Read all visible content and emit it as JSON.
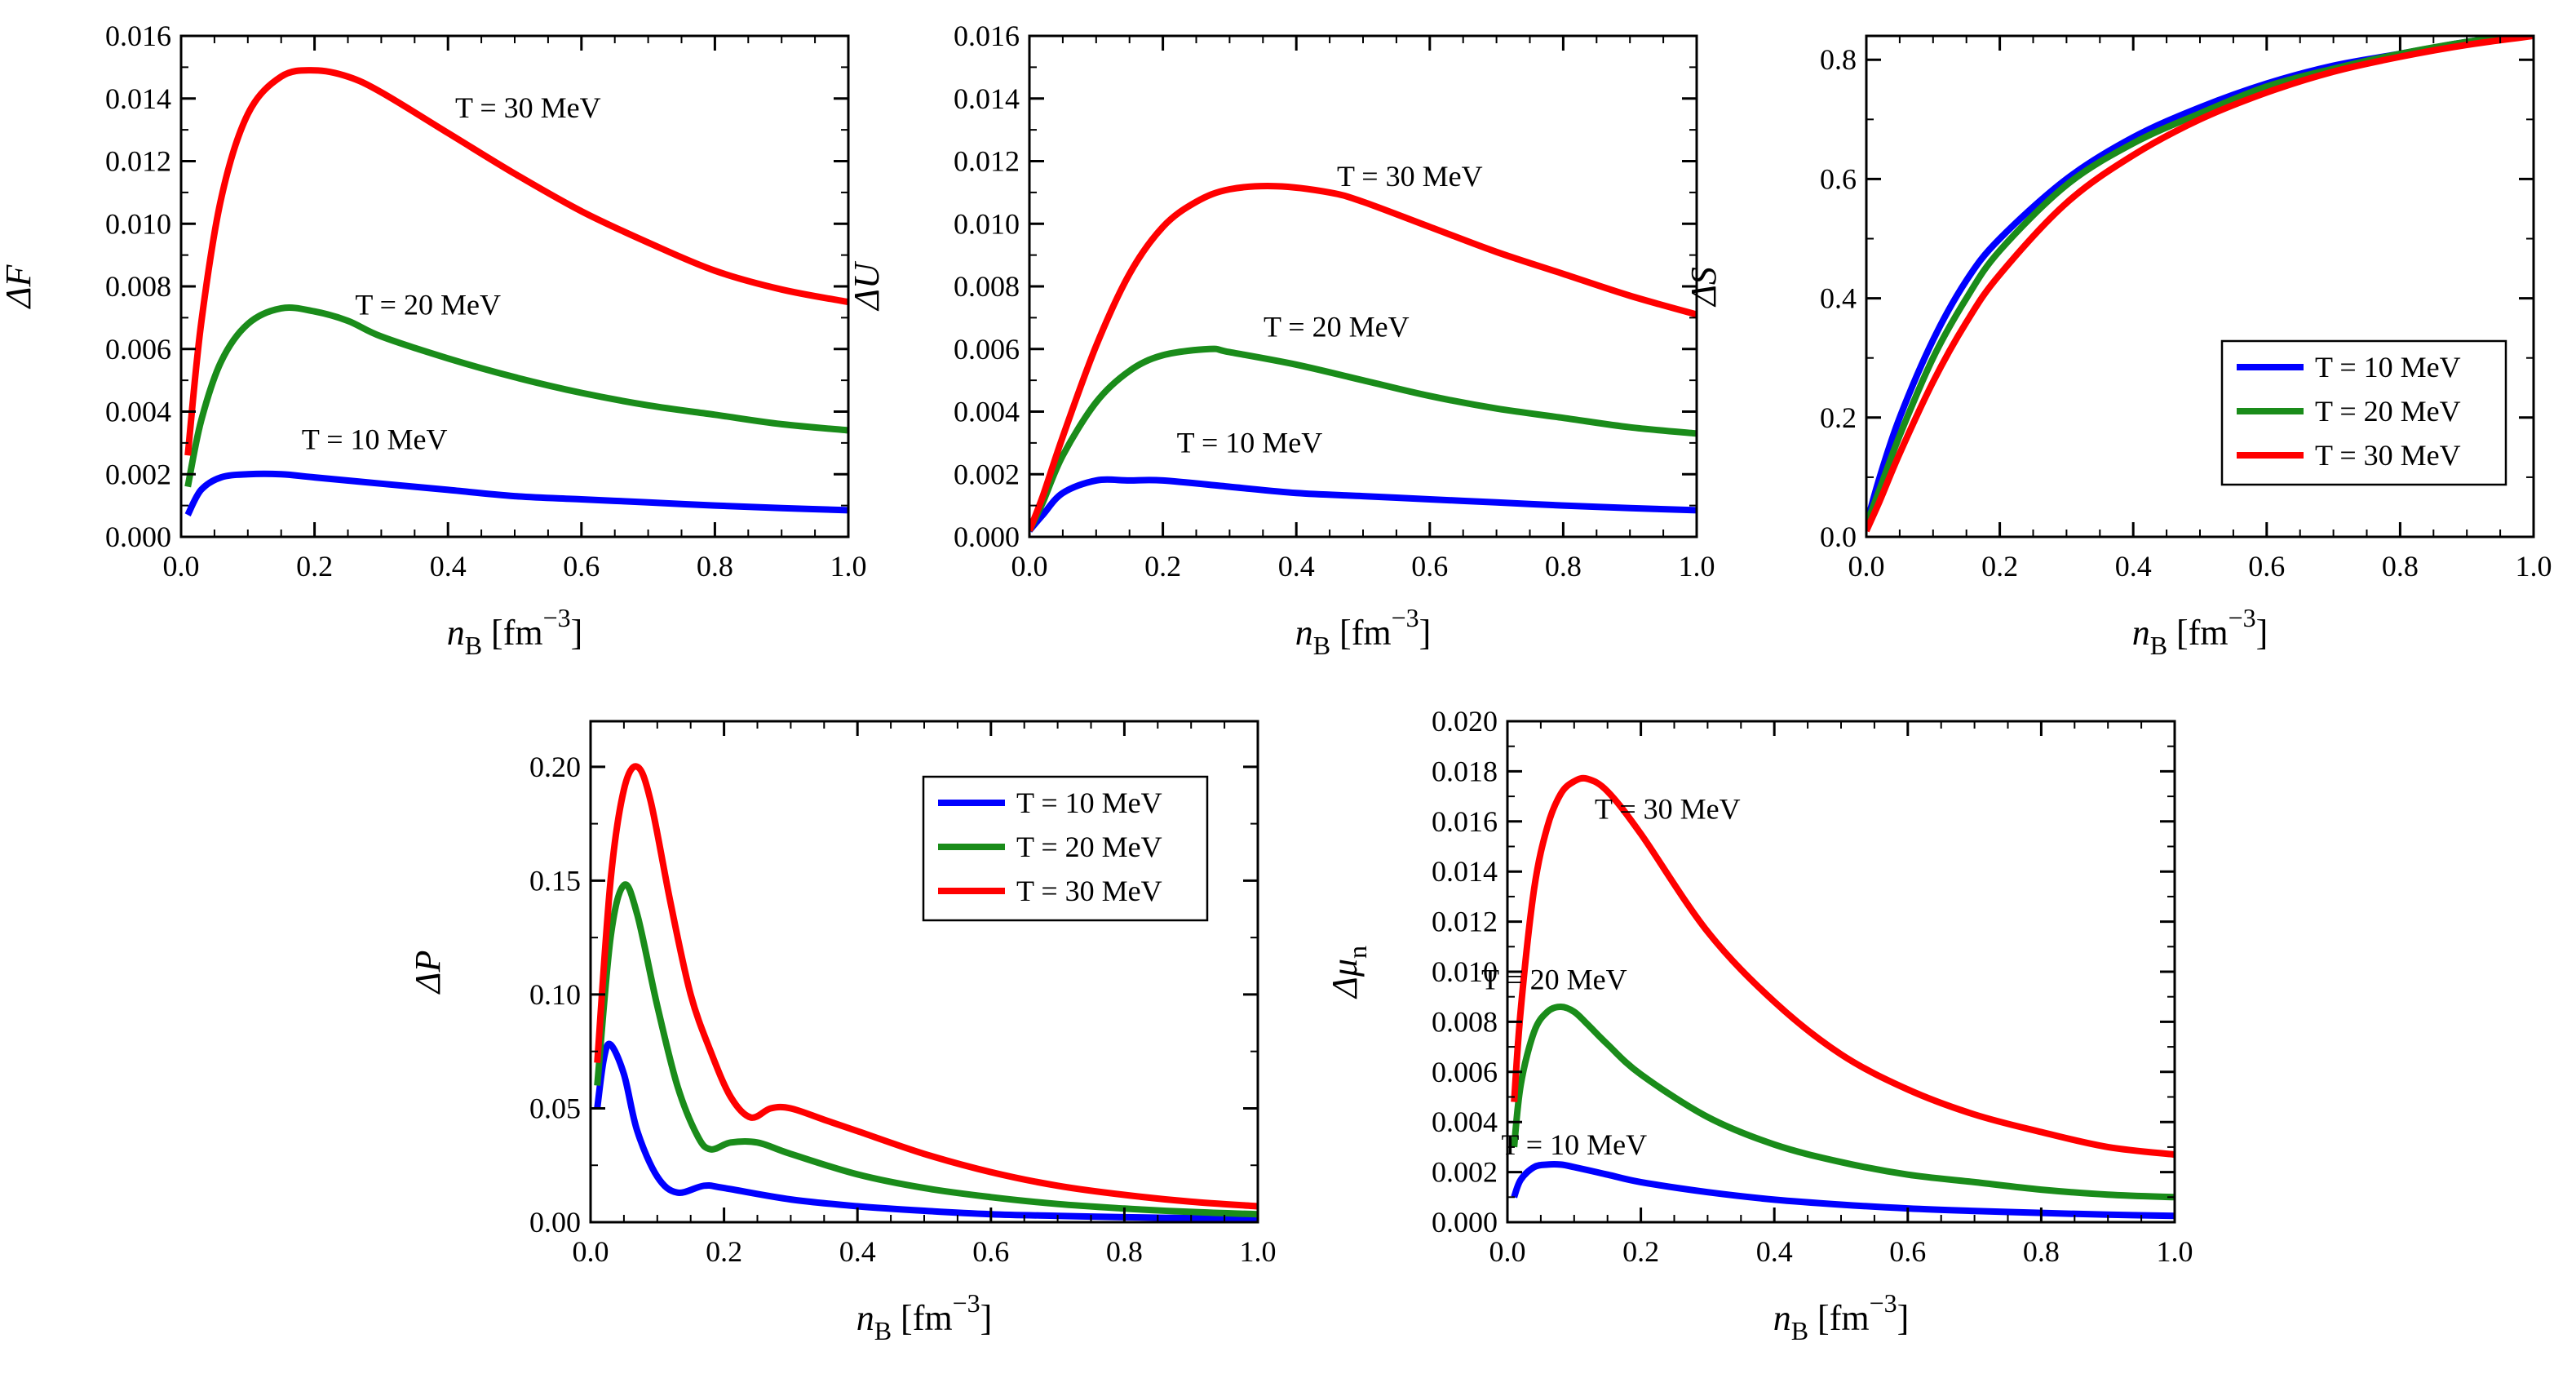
{
  "colors": {
    "T10": "#0000ff",
    "T20": "#1a8c1a",
    "T30": "#ff0000",
    "frame": "#000000"
  },
  "chart_data": [
    {
      "id": "dF",
      "type": "line",
      "xlabel": "n_B [fm^-3]",
      "ylabel": "ΔF",
      "xlim": [
        0,
        1.0
      ],
      "ylim": [
        0,
        0.016
      ],
      "xticks": [
        "0.0",
        "0.2",
        "0.4",
        "0.6",
        "0.8",
        "1.0"
      ],
      "yticks": [
        "0.000",
        "0.002",
        "0.004",
        "0.006",
        "0.008",
        "0.010",
        "0.012",
        "0.014",
        "0.016"
      ],
      "legend": null,
      "annotations": [
        {
          "text": "T = 30 MeV",
          "x": 0.52,
          "y": 0.0134
        },
        {
          "text": "T = 20 MeV",
          "x": 0.37,
          "y": 0.0071
        },
        {
          "text": "T = 10 MeV",
          "x": 0.29,
          "y": 0.0028
        }
      ],
      "series": [
        {
          "name": "T = 10 MeV",
          "color_key": "T10",
          "x": [
            0.01,
            0.03,
            0.06,
            0.1,
            0.15,
            0.2,
            0.3,
            0.4,
            0.5,
            0.6,
            0.7,
            0.8,
            0.9,
            1.0
          ],
          "y": [
            0.0007,
            0.0015,
            0.0019,
            0.002,
            0.002,
            0.0019,
            0.0017,
            0.0015,
            0.0013,
            0.0012,
            0.0011,
            0.001,
            0.00092,
            0.00085
          ]
        },
        {
          "name": "T = 20 MeV",
          "color_key": "T20",
          "x": [
            0.01,
            0.03,
            0.06,
            0.1,
            0.15,
            0.2,
            0.25,
            0.3,
            0.4,
            0.5,
            0.6,
            0.7,
            0.8,
            0.9,
            1.0
          ],
          "y": [
            0.0016,
            0.0037,
            0.0056,
            0.0068,
            0.0073,
            0.0072,
            0.0069,
            0.0064,
            0.0057,
            0.0051,
            0.0046,
            0.0042,
            0.0039,
            0.0036,
            0.0034
          ]
        },
        {
          "name": "T = 30 MeV",
          "color_key": "T30",
          "x": [
            0.01,
            0.03,
            0.06,
            0.1,
            0.15,
            0.2,
            0.25,
            0.3,
            0.4,
            0.5,
            0.6,
            0.7,
            0.8,
            0.9,
            1.0
          ],
          "y": [
            0.0026,
            0.0068,
            0.0108,
            0.0135,
            0.0147,
            0.0149,
            0.0147,
            0.0142,
            0.0129,
            0.0116,
            0.0104,
            0.0094,
            0.0085,
            0.0079,
            0.0075
          ]
        }
      ]
    },
    {
      "id": "dU",
      "type": "line",
      "xlabel": "n_B [fm^-3]",
      "ylabel": "ΔU",
      "xlim": [
        0,
        1.0
      ],
      "ylim": [
        0,
        0.016
      ],
      "xticks": [
        "0.0",
        "0.2",
        "0.4",
        "0.6",
        "0.8",
        "1.0"
      ],
      "yticks": [
        "0.000",
        "0.002",
        "0.004",
        "0.006",
        "0.008",
        "0.010",
        "0.012",
        "0.014",
        "0.016"
      ],
      "legend": null,
      "annotations": [
        {
          "text": "T = 30 MeV",
          "x": 0.57,
          "y": 0.0112
        },
        {
          "text": "T = 20 MeV",
          "x": 0.46,
          "y": 0.0064
        },
        {
          "text": "T = 10 MeV",
          "x": 0.33,
          "y": 0.0027
        }
      ],
      "series": [
        {
          "name": "T = 10 MeV",
          "color_key": "T10",
          "x": [
            0.0,
            0.02,
            0.05,
            0.1,
            0.15,
            0.2,
            0.3,
            0.4,
            0.5,
            0.6,
            0.7,
            0.8,
            0.9,
            1.0
          ],
          "y": [
            0.0002,
            0.0007,
            0.0014,
            0.0018,
            0.0018,
            0.0018,
            0.0016,
            0.0014,
            0.0013,
            0.0012,
            0.0011,
            0.001,
            0.00092,
            0.00085
          ]
        },
        {
          "name": "T = 20 MeV",
          "color_key": "T20",
          "x": [
            0.0,
            0.02,
            0.05,
            0.1,
            0.15,
            0.2,
            0.27,
            0.3,
            0.4,
            0.5,
            0.6,
            0.7,
            0.8,
            0.9,
            1.0
          ],
          "y": [
            0.0002,
            0.0011,
            0.0026,
            0.0043,
            0.0053,
            0.0058,
            0.006,
            0.0059,
            0.0055,
            0.005,
            0.0045,
            0.0041,
            0.0038,
            0.0035,
            0.0033
          ]
        },
        {
          "name": "T = 30 MeV",
          "color_key": "T30",
          "x": [
            0.0,
            0.02,
            0.05,
            0.1,
            0.15,
            0.2,
            0.25,
            0.3,
            0.37,
            0.45,
            0.5,
            0.6,
            0.7,
            0.8,
            0.9,
            1.0
          ],
          "y": [
            0.0002,
            0.0013,
            0.0032,
            0.0061,
            0.0084,
            0.0099,
            0.0107,
            0.0111,
            0.0112,
            0.011,
            0.0107,
            0.0099,
            0.0091,
            0.0084,
            0.0077,
            0.0071
          ]
        }
      ]
    },
    {
      "id": "dS",
      "type": "line",
      "xlabel": "n_B [fm^-3]",
      "ylabel": "ΔS",
      "xlim": [
        0,
        1.0
      ],
      "ylim": [
        0,
        0.84
      ],
      "xticks": [
        "0.0",
        "0.2",
        "0.4",
        "0.6",
        "0.8",
        "1.0"
      ],
      "yticks": [
        "0.0",
        "0.2",
        "0.4",
        "0.6",
        "0.8"
      ],
      "ytick_values": [
        0.0,
        0.2,
        0.4,
        0.6,
        0.8
      ],
      "legend": "lower-right",
      "annotations": [],
      "series": [
        {
          "name": "T = 10 MeV",
          "color_key": "T10",
          "x": [
            0.0,
            0.02,
            0.05,
            0.1,
            0.15,
            0.2,
            0.3,
            0.4,
            0.5,
            0.6,
            0.7,
            0.8,
            0.9,
            1.0
          ],
          "y": [
            0.02,
            0.1,
            0.2,
            0.33,
            0.43,
            0.5,
            0.6,
            0.67,
            0.72,
            0.76,
            0.79,
            0.81,
            0.83,
            0.845
          ]
        },
        {
          "name": "T = 20 MeV",
          "color_key": "T20",
          "x": [
            0.0,
            0.02,
            0.05,
            0.1,
            0.15,
            0.2,
            0.3,
            0.4,
            0.5,
            0.6,
            0.7,
            0.8,
            0.9,
            1.0
          ],
          "y": [
            0.02,
            0.08,
            0.17,
            0.3,
            0.4,
            0.48,
            0.59,
            0.66,
            0.71,
            0.755,
            0.785,
            0.81,
            0.83,
            0.845
          ]
        },
        {
          "name": "T = 30 MeV",
          "color_key": "T30",
          "x": [
            0.0,
            0.02,
            0.05,
            0.1,
            0.15,
            0.2,
            0.3,
            0.4,
            0.5,
            0.6,
            0.7,
            0.8,
            0.9,
            1.0
          ],
          "y": [
            0.01,
            0.06,
            0.14,
            0.26,
            0.36,
            0.44,
            0.56,
            0.64,
            0.7,
            0.745,
            0.78,
            0.805,
            0.825,
            0.84
          ]
        }
      ]
    },
    {
      "id": "dP",
      "type": "line",
      "xlabel": "n_B [fm^-3]",
      "ylabel": "ΔP",
      "xlim": [
        0,
        1.0
      ],
      "ylim": [
        0,
        0.22
      ],
      "xticks": [
        "0.0",
        "0.2",
        "0.4",
        "0.6",
        "0.8",
        "1.0"
      ],
      "yticks": [
        "0.00",
        "0.05",
        "0.10",
        "0.15",
        "0.20"
      ],
      "ytick_values": [
        0.0,
        0.05,
        0.1,
        0.15,
        0.2
      ],
      "legend": "upper-right",
      "annotations": [],
      "series": [
        {
          "name": "T = 10 MeV",
          "color_key": "T10",
          "x": [
            0.01,
            0.02,
            0.03,
            0.05,
            0.07,
            0.1,
            0.13,
            0.17,
            0.2,
            0.3,
            0.4,
            0.5,
            0.6,
            0.7,
            0.8,
            0.9,
            1.0
          ],
          "y": [
            0.05,
            0.072,
            0.078,
            0.065,
            0.04,
            0.02,
            0.013,
            0.016,
            0.015,
            0.01,
            0.007,
            0.005,
            0.0035,
            0.0028,
            0.0022,
            0.0018,
            0.0015
          ]
        },
        {
          "name": "T = 20 MeV",
          "color_key": "T20",
          "x": [
            0.01,
            0.03,
            0.05,
            0.07,
            0.1,
            0.13,
            0.16,
            0.18,
            0.21,
            0.25,
            0.3,
            0.4,
            0.5,
            0.6,
            0.7,
            0.8,
            0.9,
            1.0
          ],
          "y": [
            0.06,
            0.125,
            0.148,
            0.135,
            0.095,
            0.06,
            0.038,
            0.032,
            0.035,
            0.035,
            0.03,
            0.021,
            0.015,
            0.011,
            0.008,
            0.006,
            0.0045,
            0.0035
          ]
        },
        {
          "name": "T = 30 MeV",
          "color_key": "T30",
          "x": [
            0.01,
            0.03,
            0.05,
            0.07,
            0.09,
            0.12,
            0.15,
            0.18,
            0.21,
            0.24,
            0.27,
            0.3,
            0.35,
            0.4,
            0.5,
            0.6,
            0.7,
            0.8,
            0.9,
            1.0
          ],
          "y": [
            0.07,
            0.15,
            0.19,
            0.2,
            0.185,
            0.14,
            0.1,
            0.075,
            0.055,
            0.046,
            0.05,
            0.05,
            0.045,
            0.04,
            0.03,
            0.022,
            0.016,
            0.012,
            0.009,
            0.007
          ]
        }
      ]
    },
    {
      "id": "dMu",
      "type": "line",
      "xlabel": "n_B [fm^-3]",
      "ylabel": "Δμn",
      "xlim": [
        0,
        1.0
      ],
      "ylim": [
        0,
        0.02
      ],
      "xticks": [
        "0.0",
        "0.2",
        "0.4",
        "0.6",
        "0.8",
        "1.0"
      ],
      "yticks": [
        "0.000",
        "0.002",
        "0.004",
        "0.006",
        "0.008",
        "0.010",
        "0.012",
        "0.014",
        "0.016",
        "0.018",
        "0.020"
      ],
      "legend": null,
      "annotations": [
        {
          "text": "T = 30 MeV",
          "x": 0.24,
          "y": 0.0161
        },
        {
          "text": "T = 20 MeV",
          "x": 0.07,
          "y": 0.0093
        },
        {
          "text": "T = 10 MeV",
          "x": 0.1,
          "y": 0.0027
        }
      ],
      "series": [
        {
          "name": "T = 10 MeV",
          "color_key": "T10",
          "x": [
            0.01,
            0.02,
            0.04,
            0.06,
            0.08,
            0.1,
            0.15,
            0.2,
            0.3,
            0.4,
            0.5,
            0.6,
            0.7,
            0.8,
            0.9,
            1.0
          ],
          "y": [
            0.001,
            0.0017,
            0.0022,
            0.0023,
            0.0023,
            0.0022,
            0.0019,
            0.0016,
            0.0012,
            0.0009,
            0.0007,
            0.00055,
            0.00045,
            0.00037,
            0.0003,
            0.00025
          ]
        },
        {
          "name": "T = 20 MeV",
          "color_key": "T20",
          "x": [
            0.01,
            0.02,
            0.04,
            0.06,
            0.08,
            0.1,
            0.12,
            0.15,
            0.2,
            0.3,
            0.4,
            0.5,
            0.6,
            0.7,
            0.8,
            0.9,
            1.0
          ],
          "y": [
            0.003,
            0.0055,
            0.0076,
            0.0084,
            0.0086,
            0.0084,
            0.0079,
            0.0071,
            0.0059,
            0.0042,
            0.0031,
            0.0024,
            0.0019,
            0.0016,
            0.0013,
            0.0011,
            0.001
          ]
        },
        {
          "name": "T = 30 MeV",
          "color_key": "T30",
          "x": [
            0.01,
            0.02,
            0.04,
            0.06,
            0.08,
            0.1,
            0.12,
            0.15,
            0.2,
            0.3,
            0.4,
            0.5,
            0.6,
            0.7,
            0.8,
            0.9,
            1.0
          ],
          "y": [
            0.0048,
            0.0085,
            0.0133,
            0.0158,
            0.0171,
            0.0176,
            0.0177,
            0.0172,
            0.0155,
            0.0116,
            0.0088,
            0.0067,
            0.0053,
            0.0043,
            0.0036,
            0.003,
            0.0027
          ]
        }
      ]
    }
  ]
}
